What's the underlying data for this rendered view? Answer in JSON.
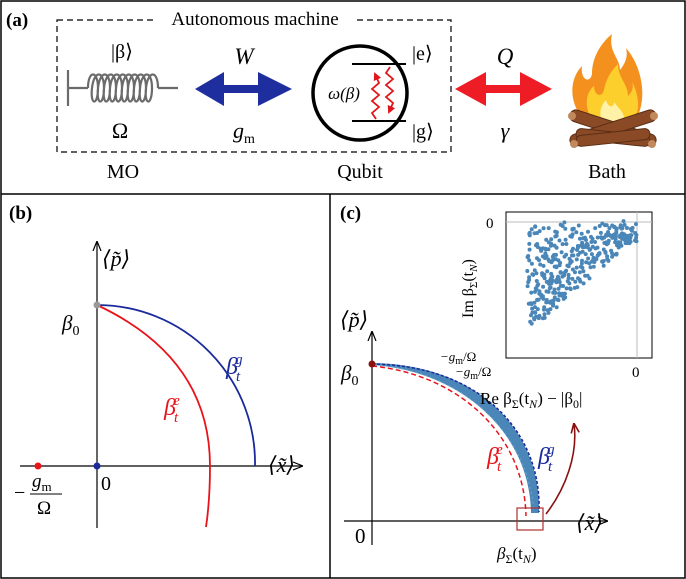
{
  "panel_a": {
    "tag": "(a)",
    "machine_label": "Autonomous machine",
    "mo_state": "|β⟩",
    "mo_freq": "Ω",
    "mo_label": "MO",
    "work_symbol": "W",
    "coupling": "g",
    "coupling_sub": "m",
    "qubit_freq": "ω(β)",
    "qubit_excited": "|e⟩",
    "qubit_ground": "|g⟩",
    "qubit_label": "Qubit",
    "heat_symbol": "Q",
    "damping": "γ",
    "bath_label": "Bath",
    "colors": {
      "work_arrow": "#1f2e9e",
      "heat_arrow": "#ee1c24",
      "wave": "#e0161c"
    }
  },
  "panel_b": {
    "tag": "(b)",
    "y_axis_label": "⟨p̃⟩",
    "x_axis_label": "⟨x̃⟩",
    "beta0_label": "β",
    "beta0_sub": "0",
    "origin_label": "0",
    "offset_num_base": "g",
    "offset_num_sub": "m",
    "offset_den": "Ω",
    "offset_sign": "−",
    "curve_g_base": "β",
    "curve_g_sub": "t",
    "curve_g_sup": "g",
    "curve_e_base": "β",
    "curve_e_sub": "t",
    "curve_e_sup": "e",
    "colors": {
      "curve_g": "#1a2a9a",
      "curve_e": "#e8141c",
      "dot_offset": "#e8141c",
      "dot_origin": "#1a2a9a",
      "dot_beta0": "#999999"
    }
  },
  "panel_c": {
    "tag": "(c)",
    "y_axis_label": "⟨p̃⟩",
    "x_axis_label": "⟨x̃⟩",
    "beta0_label": "β",
    "beta0_sub": "0",
    "origin_label": "0",
    "endpoint_base": "β",
    "endpoint_sub": "Σ",
    "endpoint_arg": "(t",
    "endpoint_arg_sub": "N",
    "endpoint_close": ")",
    "curve_g_base": "β",
    "curve_g_sub": "t",
    "curve_g_sup": "g",
    "curve_e_base": "β",
    "curve_e_sub": "t",
    "curve_e_sup": "e",
    "colors": {
      "band": "#4a87b8",
      "curve_g": "#1a2a9a",
      "curve_e": "#e8141c",
      "arrow": "#8b1010",
      "box": "#b03030"
    }
  },
  "inset": {
    "ylabel": "Im β",
    "ylabel_sub": "Σ",
    "ylabel_arg": "(t",
    "ylabel_arg_sub": "N",
    "ylabel_close": ")",
    "xlabel": "Re β",
    "xlabel_sub": "Σ",
    "xlabel_arg": "(t",
    "xlabel_arg_sub": "N",
    "xlabel_rest": ") − |β",
    "xlabel_rest_sub": "0",
    "xlabel_close": "|",
    "y_tick_top": "0",
    "x_tick_right": "0",
    "y_tick_bottom": "−g",
    "y_tick_bottom_sub": "m",
    "y_tick_bottom_den": "/Ω",
    "x_tick_left": "−g",
    "x_tick_left_sub": "m",
    "x_tick_left_den": "/Ω",
    "colors": {
      "points": "#4a87b8",
      "guide": "#bbbbbb"
    }
  }
}
